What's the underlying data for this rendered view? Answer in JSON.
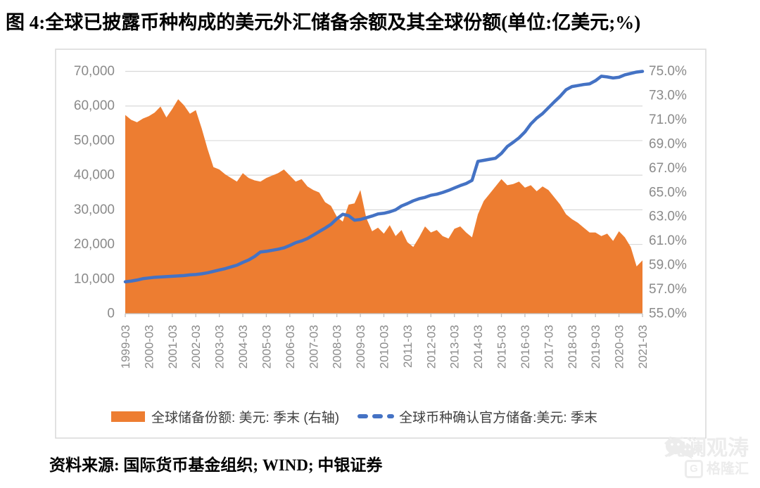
{
  "title": "图 4:全球已披露币种构成的美元外汇储备余额及其全球份额(单位:亿美元;%)",
  "source": "资料来源: 国际货币基金组织; WIND; 中银证券",
  "watermark": {
    "brand": "凭澜观涛",
    "logo": "格隆汇",
    "logo_letter": "G"
  },
  "legend": [
    {
      "label": "全球储备份额: 美元: 季末 (右轴)",
      "color": "#ED7D31",
      "type": "area"
    },
    {
      "label": "全球币种确认官方储备:美元: 季末",
      "color": "#4472C4",
      "type": "dashed-line"
    }
  ],
  "colors": {
    "area": "#ED7D31",
    "line": "#4472C4",
    "grid": "#D9D9D9",
    "axis_line": "#BFBFBF",
    "axis_text": "#8a8a8a",
    "chart_border": "#D9D9D9"
  },
  "chart_data": {
    "type": "area+line combo, dual axis",
    "frequency": "quarterly",
    "x_start": "1999-03",
    "x_end": "2021-03",
    "x_tick_labels": [
      "1999-03",
      "2000-03",
      "2001-03",
      "2002-03",
      "2003-03",
      "2004-03",
      "2005-03",
      "2006-03",
      "2007-03",
      "2008-03",
      "2009-03",
      "2010-03",
      "2011-03",
      "2012-03",
      "2013-03",
      "2014-03",
      "2015-03",
      "2016-03",
      "2017-03",
      "2018-03",
      "2019-03",
      "2020-03",
      "2021-03"
    ],
    "left_axis": {
      "min": 0,
      "max": 70000,
      "step": 10000,
      "labels": [
        "70,000",
        "60,000",
        "50,000",
        "40,000",
        "30,000",
        "20,000",
        "10,000",
        "0"
      ]
    },
    "right_axis": {
      "min": 55,
      "max": 75,
      "step": 2,
      "labels": [
        "75.0%",
        "73.0%",
        "71.0%",
        "69.0%",
        "67.0%",
        "65.0%",
        "63.0%",
        "61.0%",
        "59.0%",
        "57.0%",
        "55.0%"
      ]
    },
    "series": [
      {
        "name": "全球储备份额: 美元: 季末 (右轴)",
        "type": "area",
        "axis": "right",
        "unit": "%",
        "color": "#ED7D31",
        "values": [
          71.4,
          71.0,
          70.8,
          71.1,
          71.3,
          71.6,
          72.1,
          71.2,
          71.9,
          72.7,
          72.2,
          71.5,
          71.8,
          70.3,
          68.6,
          67.1,
          66.9,
          66.5,
          66.2,
          65.9,
          66.6,
          66.2,
          66.0,
          65.9,
          66.2,
          66.4,
          66.6,
          66.9,
          66.4,
          65.9,
          66.1,
          65.5,
          65.2,
          65.0,
          64.2,
          63.9,
          63.0,
          62.6,
          64.0,
          64.1,
          65.2,
          62.9,
          61.8,
          62.1,
          61.6,
          62.3,
          61.4,
          61.9,
          60.9,
          60.5,
          61.3,
          62.2,
          61.7,
          61.9,
          61.4,
          61.2,
          62.0,
          62.2,
          61.7,
          61.3,
          63.2,
          64.3,
          64.9,
          65.5,
          66.1,
          65.6,
          65.7,
          65.9,
          65.4,
          65.6,
          65.1,
          65.5,
          65.2,
          64.6,
          64.0,
          63.2,
          62.8,
          62.5,
          62.1,
          61.7,
          61.7,
          61.4,
          61.6,
          61.0,
          61.8,
          61.3,
          60.5,
          58.9,
          59.4
        ]
      },
      {
        "name": "全球币种确认官方储备:美元: 季末",
        "type": "line",
        "axis": "left",
        "unit": "亿美元",
        "color": "#4472C4",
        "values": [
          9200,
          9400,
          9700,
          10100,
          10300,
          10500,
          10600,
          10700,
          10800,
          10900,
          11000,
          11200,
          11300,
          11500,
          11800,
          12200,
          12600,
          13000,
          13500,
          14000,
          14800,
          15500,
          16500,
          17800,
          18000,
          18300,
          18600,
          19000,
          19700,
          20500,
          21000,
          21700,
          22700,
          23700,
          24700,
          25800,
          27400,
          28700,
          28300,
          27000,
          27200,
          27700,
          28200,
          28800,
          29000,
          29400,
          30000,
          31100,
          31800,
          32600,
          33200,
          33600,
          34200,
          34500,
          35000,
          35600,
          36300,
          37000,
          37600,
          38500,
          44000,
          44300,
          44600,
          44900,
          46300,
          48300,
          49500,
          50800,
          52500,
          54800,
          56500,
          57800,
          59500,
          61200,
          62800,
          64700,
          65600,
          65900,
          66200,
          66400,
          67300,
          68600,
          68400,
          68100,
          68300,
          69000,
          69400,
          69800,
          70000
        ]
      }
    ],
    "legend_position": "bottom",
    "grid": "horizontal only"
  }
}
